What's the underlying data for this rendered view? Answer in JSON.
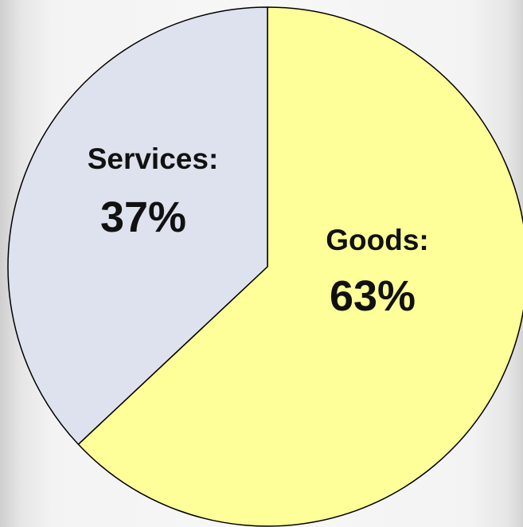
{
  "chart_data": {
    "type": "pie",
    "title": "",
    "slices": [
      {
        "label": "Goods:",
        "percent_text": "63%",
        "value": 63,
        "color": "#ffff99"
      },
      {
        "label": "Services:",
        "percent_text": "37%",
        "value": 37,
        "color": "#dde2ee"
      }
    ],
    "start_angle": "12 o'clock",
    "direction": "clockwise",
    "legend": "none",
    "outline_color": "#000000"
  }
}
